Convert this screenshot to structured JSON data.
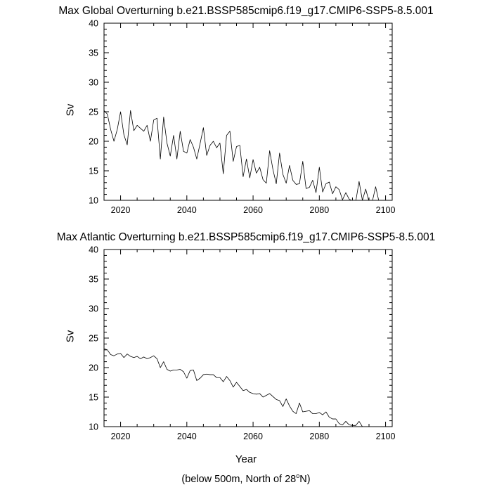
{
  "chart_data": [
    {
      "type": "line",
      "title": "Max Global Overturning b.e21.BSSP585cmip6.f19_g17.CMIP6-SSP5-8.5.001",
      "ylabel": "Sv",
      "xlabel": "",
      "xlim": [
        2015,
        2102
      ],
      "ylim": [
        10,
        40
      ],
      "xticks": [
        "2020",
        "2040",
        "2060",
        "2080",
        "2100"
      ],
      "yticks": [
        "10",
        "15",
        "20",
        "25",
        "30",
        "35",
        "40"
      ],
      "grid": false,
      "series": [
        {
          "x": [
            2015,
            2016,
            2017,
            2018,
            2019,
            2020,
            2021,
            2022,
            2023,
            2024,
            2025,
            2026,
            2027,
            2028,
            2029,
            2030,
            2031,
            2032,
            2033,
            2034,
            2035,
            2036,
            2037,
            2038,
            2039,
            2040,
            2041,
            2042,
            2043,
            2044,
            2045,
            2046,
            2047,
            2048,
            2049,
            2050,
            2051,
            2052,
            2053,
            2054,
            2055,
            2056,
            2057,
            2058,
            2059,
            2060,
            2061,
            2062,
            2063,
            2064,
            2065,
            2066,
            2067,
            2068,
            2069,
            2070,
            2071,
            2072,
            2073,
            2074,
            2075,
            2076,
            2077,
            2078,
            2079,
            2080,
            2081,
            2082,
            2083,
            2084,
            2085,
            2086,
            2087,
            2088,
            2089,
            2090,
            2091,
            2092,
            2093,
            2094,
            2095,
            2096,
            2097,
            2098,
            2099,
            2100
          ],
          "values": [
            25.2,
            24.6,
            22.0,
            20.0,
            22.0,
            25.0,
            21.1,
            19.4,
            25.2,
            21.8,
            22.7,
            22.2,
            21.7,
            22.7,
            20.0,
            23.6,
            23.9,
            17.0,
            24.1,
            19.7,
            17.5,
            21.0,
            17.0,
            21.7,
            18.3,
            18.0,
            20.3,
            19.0,
            17.0,
            19.6,
            22.3,
            17.6,
            19.3,
            20.0,
            18.9,
            19.7,
            14.5,
            21.0,
            21.7,
            16.6,
            19.1,
            19.3,
            14.0,
            17.0,
            13.8,
            16.9,
            14.6,
            15.6,
            13.5,
            12.9,
            18.4,
            15.2,
            12.8,
            18.0,
            14.4,
            12.9,
            15.9,
            13.4,
            12.7,
            12.8,
            16.6,
            12.0,
            12.2,
            13.4,
            11.3,
            15.6,
            11.4,
            12.8,
            13.1,
            11.1,
            12.3,
            11.8,
            10.1,
            11.3,
            10.2,
            9.9,
            9.8,
            13.2,
            10.0,
            11.9,
            9.8,
            9.8,
            12.3,
            9.8,
            9.8,
            9.8
          ]
        }
      ]
    },
    {
      "type": "line",
      "title": "Max Atlantic Overturning b.e21.BSSP585cmip6.f19_g17.CMIP6-SSP5-8.5.001",
      "ylabel": "Sv",
      "xlabel": "Year",
      "xlim": [
        2015,
        2102
      ],
      "ylim": [
        10,
        40
      ],
      "xticks": [
        "2020",
        "2040",
        "2060",
        "2080",
        "2100"
      ],
      "yticks": [
        "10",
        "15",
        "20",
        "25",
        "30",
        "35",
        "40"
      ],
      "grid": false,
      "series": [
        {
          "x": [
            2015,
            2016,
            2017,
            2018,
            2019,
            2020,
            2021,
            2022,
            2023,
            2024,
            2025,
            2026,
            2027,
            2028,
            2029,
            2030,
            2031,
            2032,
            2033,
            2034,
            2035,
            2036,
            2037,
            2038,
            2039,
            2040,
            2041,
            2042,
            2043,
            2044,
            2045,
            2046,
            2047,
            2048,
            2049,
            2050,
            2051,
            2052,
            2053,
            2054,
            2055,
            2056,
            2057,
            2058,
            2059,
            2060,
            2061,
            2062,
            2063,
            2064,
            2065,
            2066,
            2067,
            2068,
            2069,
            2070,
            2071,
            2072,
            2073,
            2074,
            2075,
            2076,
            2077,
            2078,
            2079,
            2080,
            2081,
            2082,
            2083,
            2084,
            2085,
            2086,
            2087,
            2088,
            2089,
            2090,
            2091,
            2092,
            2093
          ],
          "values": [
            23.2,
            23.0,
            22.2,
            22.0,
            22.3,
            22.4,
            21.7,
            22.3,
            21.9,
            21.7,
            21.9,
            21.5,
            21.8,
            21.5,
            21.7,
            22.0,
            21.5,
            20.0,
            21.0,
            19.7,
            19.4,
            19.6,
            19.6,
            19.7,
            19.3,
            18.2,
            19.5,
            19.6,
            17.8,
            18.2,
            18.8,
            18.9,
            18.8,
            18.8,
            18.3,
            18.3,
            17.6,
            18.5,
            17.8,
            16.7,
            17.5,
            16.8,
            16.1,
            16.3,
            15.8,
            15.6,
            15.5,
            15.6,
            15.0,
            15.3,
            15.6,
            15.1,
            14.6,
            14.4,
            13.4,
            14.7,
            13.5,
            12.6,
            12.2,
            14.0,
            12.5,
            12.6,
            12.7,
            12.2,
            12.2,
            12.4,
            12.0,
            12.5,
            11.6,
            11.3,
            11.3,
            10.5,
            10.3,
            10.9,
            10.3,
            10.2,
            10.2,
            10.9,
            10.0
          ]
        }
      ]
    }
  ],
  "footnote": {
    "prefix": "(below 500m, North of 28",
    "superscript": "o",
    "suffix": "N)"
  }
}
